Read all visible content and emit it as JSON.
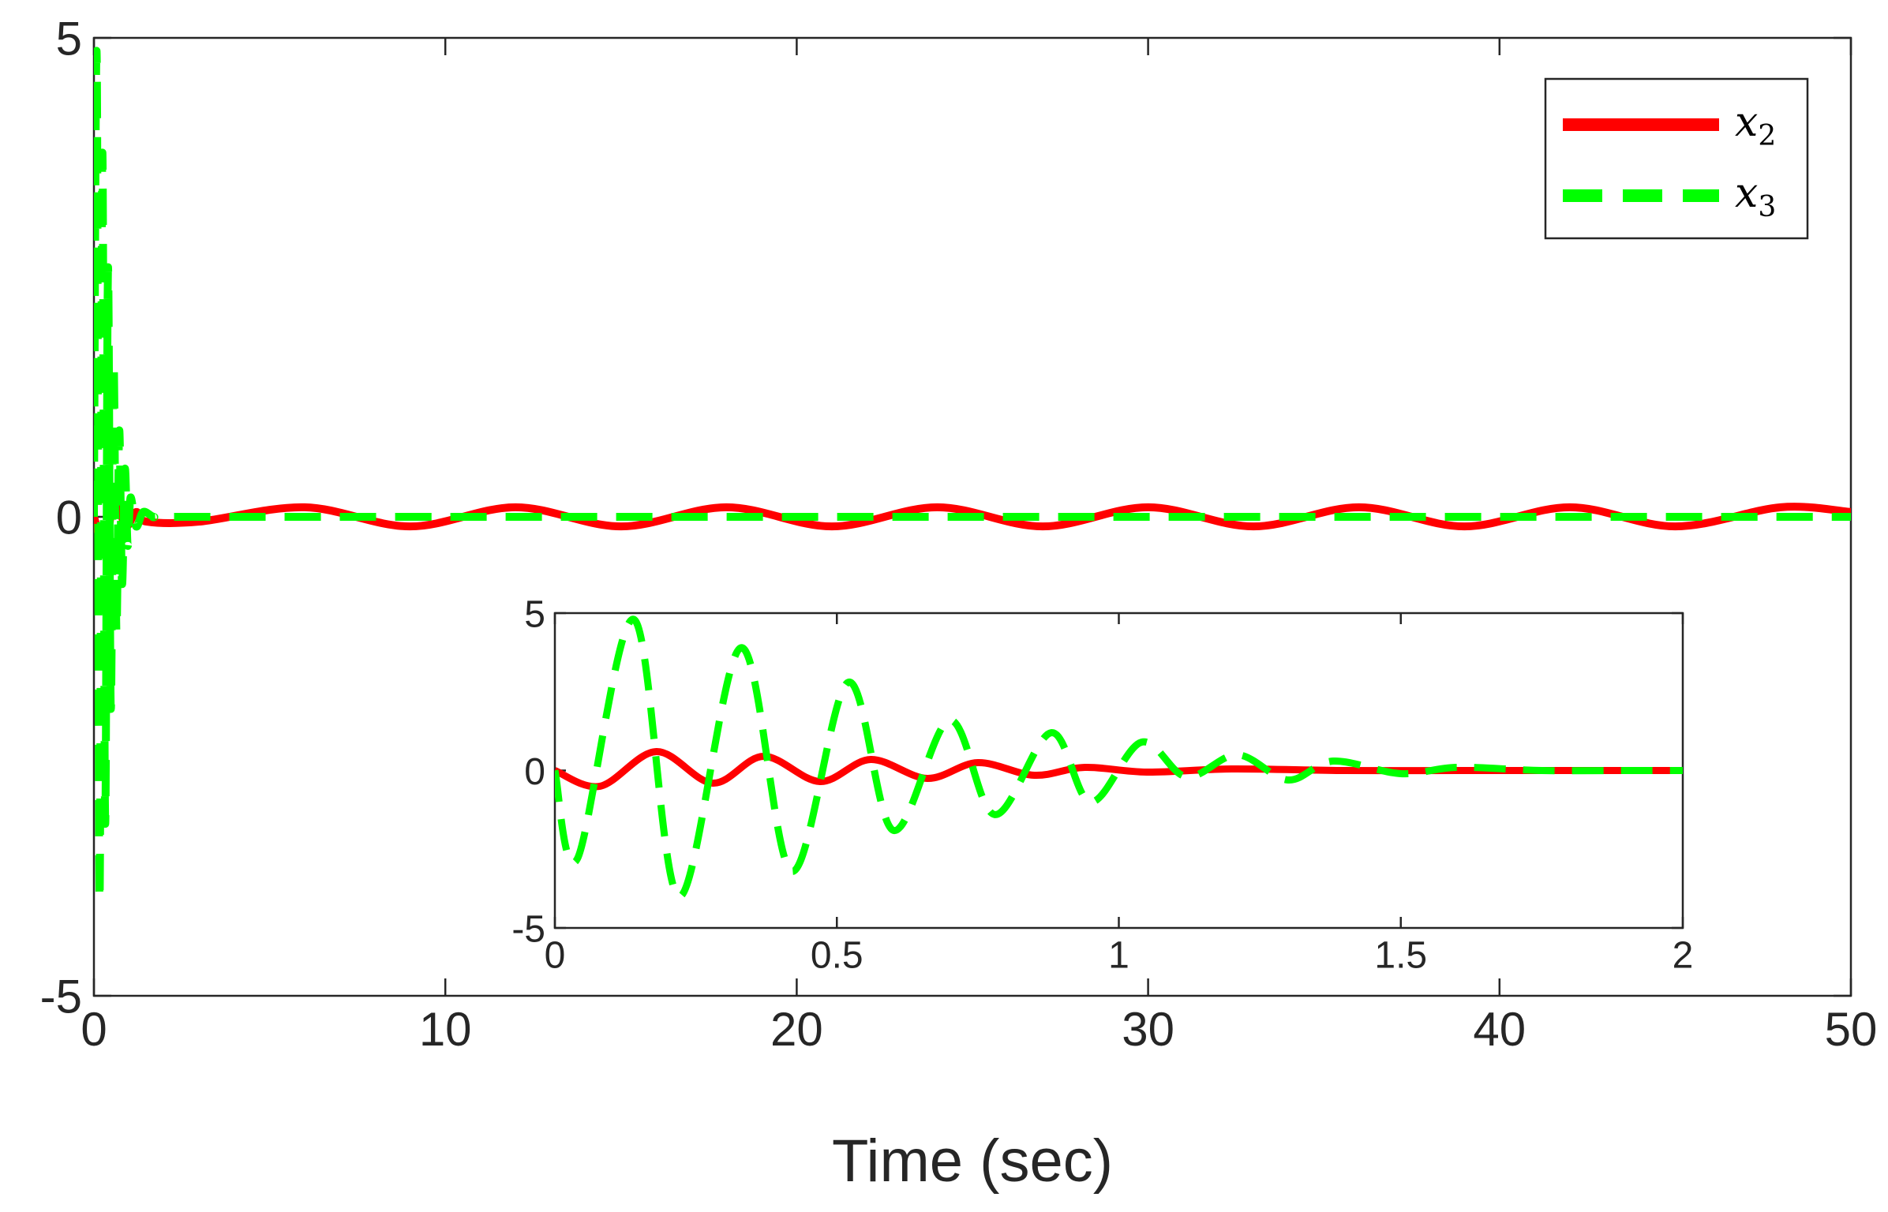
{
  "chart_data": [
    {
      "id": "main",
      "type": "line",
      "title": "",
      "xlabel": "Time (sec)",
      "ylabel": "",
      "xlim": [
        0,
        50
      ],
      "ylim": [
        -5,
        5
      ],
      "xticks": [
        0,
        10,
        20,
        30,
        40,
        50
      ],
      "yticks": [
        -5,
        0,
        5
      ],
      "grid": false,
      "legend": {
        "placement": "top-right",
        "entries": [
          {
            "series": "x2",
            "base": "x",
            "sub": "2"
          },
          {
            "series": "x3",
            "base": "x",
            "sub": "3"
          }
        ]
      },
      "series": [
        {
          "name": "x2",
          "color": "#ff0000",
          "style": "solid",
          "x": [
            0,
            0.3,
            0.6,
            0.9,
            1.2,
            1.5,
            3,
            6,
            9,
            12,
            15,
            18,
            21,
            24,
            27,
            30,
            33,
            36,
            39,
            42,
            45,
            48,
            50
          ],
          "y": [
            0,
            -0.3,
            0.2,
            -0.1,
            0.05,
            -0.05,
            -0.05,
            0.1,
            -0.1,
            0.1,
            -0.1,
            0.1,
            -0.1,
            0.1,
            -0.1,
            0.1,
            -0.1,
            0.1,
            -0.1,
            0.1,
            -0.1,
            0.1,
            0.05
          ]
        },
        {
          "name": "x3",
          "color": "#00ff00",
          "style": "dashed",
          "x": [
            0,
            0.08,
            0.16,
            0.24,
            0.32,
            0.4,
            0.48,
            0.56,
            0.64,
            0.72,
            0.8,
            0.88,
            0.96,
            1.04,
            1.2,
            1.4,
            1.7,
            2,
            5,
            10,
            15,
            20,
            25,
            30,
            35,
            40,
            45,
            50
          ],
          "y": [
            0,
            4.8,
            -4.0,
            3.8,
            -3.2,
            2.6,
            -2.0,
            1.6,
            -1.2,
            0.9,
            -0.7,
            0.5,
            -0.3,
            0.2,
            -0.1,
            0.05,
            0,
            0,
            0,
            0,
            0,
            0,
            0,
            0,
            0,
            0,
            0,
            0
          ]
        }
      ]
    },
    {
      "id": "inset",
      "type": "line",
      "title": "",
      "xlabel": "",
      "ylabel": "",
      "xlim": [
        0,
        2
      ],
      "ylim": [
        -5,
        5
      ],
      "xticks": [
        0,
        0.5,
        1,
        1.5,
        2
      ],
      "yticks": [
        -5,
        0,
        5
      ],
      "grid": false,
      "series": [
        {
          "name": "x2",
          "color": "#ff0000",
          "style": "solid",
          "x": [
            0,
            0.08,
            0.18,
            0.28,
            0.37,
            0.47,
            0.56,
            0.66,
            0.75,
            0.85,
            0.94,
            1.05,
            1.2,
            1.4,
            1.6,
            1.8,
            2.0
          ],
          "y": [
            0,
            -0.5,
            0.6,
            -0.4,
            0.45,
            -0.35,
            0.35,
            -0.25,
            0.25,
            -0.15,
            0.1,
            -0.05,
            0.05,
            0,
            0,
            0,
            0
          ]
        },
        {
          "name": "x3",
          "color": "#00ff00",
          "style": "dashed",
          "x": [
            0,
            0.04,
            0.14,
            0.22,
            0.33,
            0.42,
            0.52,
            0.6,
            0.7,
            0.78,
            0.88,
            0.95,
            1.04,
            1.12,
            1.21,
            1.3,
            1.38,
            1.5,
            1.6,
            1.75,
            1.9,
            2.0
          ],
          "y": [
            0,
            -2.8,
            4.8,
            -4.0,
            3.9,
            -3.2,
            2.8,
            -1.9,
            1.6,
            -1.4,
            1.2,
            -1.0,
            0.9,
            -0.2,
            0.5,
            -0.3,
            0.3,
            -0.1,
            0.1,
            0,
            0,
            0
          ]
        }
      ]
    }
  ]
}
